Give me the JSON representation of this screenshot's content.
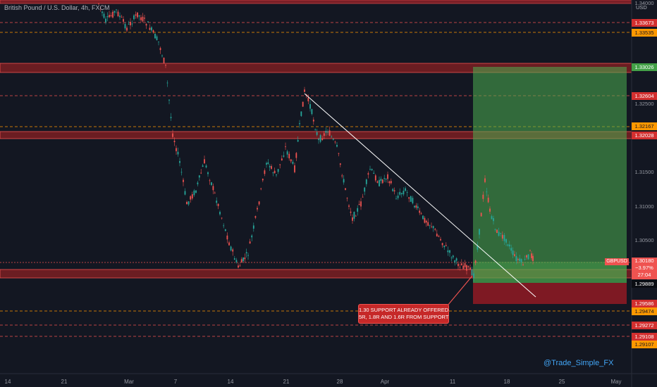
{
  "header": {
    "title": "British Pound / U.S. Dollar, 4h, FXCM",
    "currency": "USD"
  },
  "axis": {
    "ticks": [
      "1.34000",
      "1.32500",
      "1.31500",
      "1.31000",
      "1.30500"
    ]
  },
  "price_tags": [
    {
      "label": "1.33673",
      "color": "red"
    },
    {
      "label": "1.33535",
      "color": "orange"
    },
    {
      "label": "1.33026",
      "color": "green"
    },
    {
      "label": "1.32604",
      "color": "red"
    },
    {
      "label": "1.32167",
      "color": "orange"
    },
    {
      "label": "1.32028",
      "color": "red"
    },
    {
      "label": "1.29889",
      "color": "black"
    },
    {
      "label": "1.29586",
      "color": "red"
    },
    {
      "label": "1.29474",
      "color": "orange"
    },
    {
      "label": "1.29272",
      "color": "red"
    },
    {
      "label": "1.29108",
      "color": "red"
    },
    {
      "label": "1.29107",
      "color": "orange"
    }
  ],
  "live_price": {
    "symbol": "GBPUSD",
    "price": "1.30180",
    "change": "−3.97%",
    "countdown": "27:04"
  },
  "x_axis": {
    "labels": [
      "14",
      "21",
      "Mar",
      "7",
      "14",
      "21",
      "28",
      "Apr",
      "11",
      "18",
      "25",
      "May"
    ]
  },
  "annotation": {
    "line1": "1.30 SUPPORT ALREADY OFFERED",
    "line2": "5R, 1.8R AND 1.6R FROM SUPPORT"
  },
  "watermark": "@Trade_Simple_FX",
  "colors": {
    "background": "#131722",
    "bull": "#26a69a",
    "bear": "#ef5350",
    "zone": "#b22a2a",
    "target_zone": "#4caf50",
    "stop_zone": "#8b1a24",
    "trendline": "#ffffff"
  }
}
